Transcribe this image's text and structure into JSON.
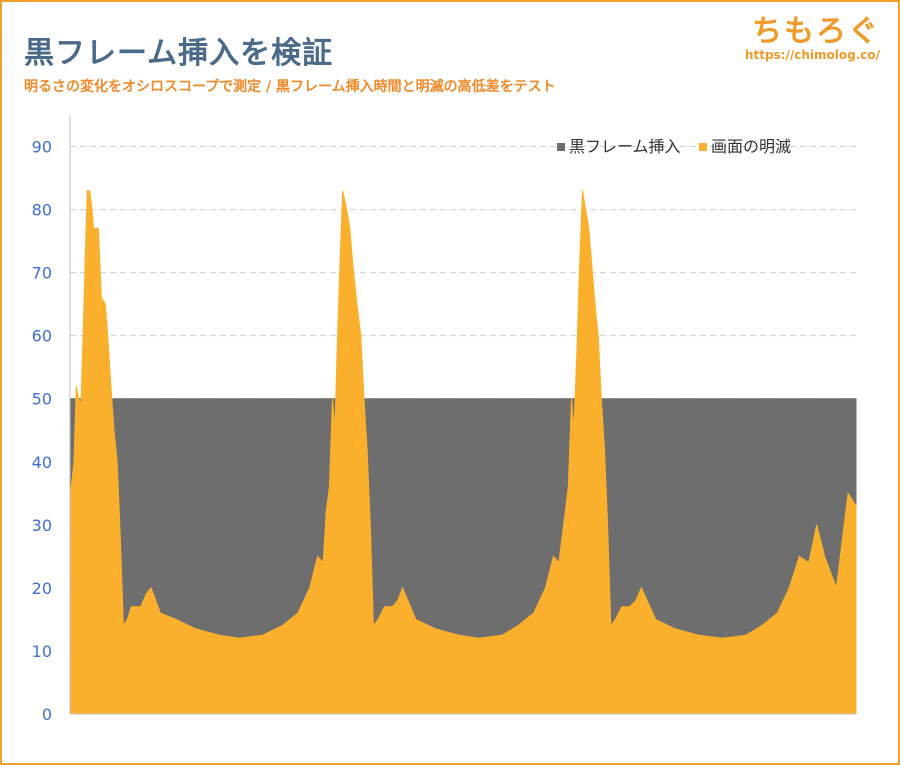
{
  "header": {
    "title": "黒フレーム挿入を検証",
    "subtitle": "明るさの変化をオシロスコープで測定 / 黒フレーム挿入時間と明滅の高低差をテスト"
  },
  "logo": {
    "name": "ちもろぐ",
    "url": "https://chimolog.co/"
  },
  "colors": {
    "accent": "#f0a02a",
    "title": "#4a6a8a",
    "subtitle": "#f08a2a",
    "black_frame": "#6e6e6e",
    "brightness": "#fbb02d",
    "tick": "#3f6fd0"
  },
  "chart_data": {
    "type": "area",
    "title": "",
    "xlabel": "",
    "ylabel": "",
    "ylim": [
      0,
      95
    ],
    "yticks": [
      "0",
      "10",
      "20",
      "30",
      "40",
      "50",
      "60",
      "70",
      "80",
      "90"
    ],
    "grid": "horizontal dashed",
    "legend_position": "top-right",
    "x_range": [
      0,
      1
    ],
    "series": [
      {
        "name": "黒フレーム挿入",
        "color": "#6e6e6e",
        "points": [
          [
            0,
            50
          ],
          [
            1,
            50
          ]
        ]
      },
      {
        "name": "画面の明滅",
        "color": "#fbb02d",
        "points": [
          [
            0.0,
            34
          ],
          [
            0.005,
            40
          ],
          [
            0.008,
            52
          ],
          [
            0.011,
            50
          ],
          [
            0.014,
            49
          ],
          [
            0.017,
            62
          ],
          [
            0.02,
            75
          ],
          [
            0.022,
            83
          ],
          [
            0.025,
            83
          ],
          [
            0.028,
            80
          ],
          [
            0.03,
            77
          ],
          [
            0.036,
            77
          ],
          [
            0.04,
            66
          ],
          [
            0.045,
            65
          ],
          [
            0.048,
            60
          ],
          [
            0.052,
            52
          ],
          [
            0.056,
            45
          ],
          [
            0.06,
            40
          ],
          [
            0.064,
            28
          ],
          [
            0.068,
            14
          ],
          [
            0.073,
            15
          ],
          [
            0.078,
            17
          ],
          [
            0.09,
            17
          ],
          [
            0.097,
            19
          ],
          [
            0.103,
            20
          ],
          [
            0.115,
            16
          ],
          [
            0.135,
            15
          ],
          [
            0.16,
            13.5
          ],
          [
            0.19,
            12.5
          ],
          [
            0.215,
            12
          ],
          [
            0.245,
            12.5
          ],
          [
            0.27,
            14
          ],
          [
            0.29,
            16
          ],
          [
            0.305,
            20
          ],
          [
            0.315,
            25
          ],
          [
            0.322,
            24
          ],
          [
            0.326,
            32
          ],
          [
            0.33,
            36
          ],
          [
            0.334,
            50
          ],
          [
            0.337,
            45
          ],
          [
            0.34,
            58
          ],
          [
            0.343,
            70
          ],
          [
            0.347,
            83
          ],
          [
            0.352,
            80
          ],
          [
            0.356,
            77
          ],
          [
            0.36,
            71
          ],
          [
            0.365,
            65
          ],
          [
            0.37,
            60
          ],
          [
            0.374,
            50
          ],
          [
            0.378,
            42
          ],
          [
            0.382,
            30
          ],
          [
            0.386,
            14
          ],
          [
            0.392,
            15
          ],
          [
            0.4,
            17
          ],
          [
            0.41,
            17
          ],
          [
            0.417,
            18
          ],
          [
            0.423,
            20
          ],
          [
            0.44,
            15
          ],
          [
            0.465,
            13.5
          ],
          [
            0.495,
            12.5
          ],
          [
            0.52,
            12
          ],
          [
            0.55,
            12.5
          ],
          [
            0.57,
            14
          ],
          [
            0.59,
            16
          ],
          [
            0.605,
            20
          ],
          [
            0.615,
            25
          ],
          [
            0.622,
            24
          ],
          [
            0.63,
            32
          ],
          [
            0.634,
            36
          ],
          [
            0.638,
            50
          ],
          [
            0.641,
            45
          ],
          [
            0.645,
            58
          ],
          [
            0.648,
            70
          ],
          [
            0.652,
            83
          ],
          [
            0.656,
            80
          ],
          [
            0.66,
            77
          ],
          [
            0.664,
            71
          ],
          [
            0.668,
            65
          ],
          [
            0.672,
            60
          ],
          [
            0.676,
            50
          ],
          [
            0.68,
            42
          ],
          [
            0.684,
            30
          ],
          [
            0.688,
            14
          ],
          [
            0.694,
            15
          ],
          [
            0.702,
            17
          ],
          [
            0.712,
            17
          ],
          [
            0.72,
            18
          ],
          [
            0.727,
            20
          ],
          [
            0.745,
            15
          ],
          [
            0.77,
            13.5
          ],
          [
            0.8,
            12.5
          ],
          [
            0.83,
            12
          ],
          [
            0.86,
            12.5
          ],
          [
            0.88,
            14
          ],
          [
            0.9,
            16
          ],
          [
            0.915,
            20
          ],
          [
            0.928,
            25
          ],
          [
            0.94,
            24
          ],
          [
            0.95,
            30
          ],
          [
            0.96,
            25
          ],
          [
            0.975,
            20
          ],
          [
            0.99,
            35
          ],
          [
            1.0,
            33
          ]
        ]
      }
    ]
  }
}
